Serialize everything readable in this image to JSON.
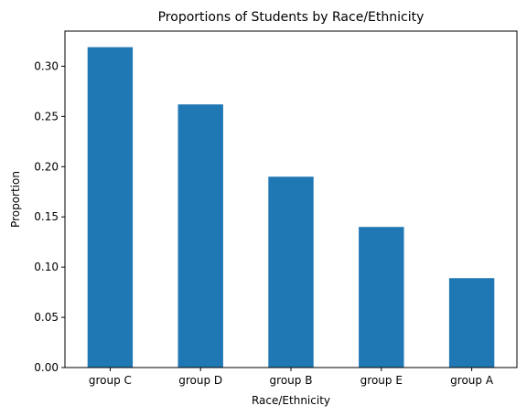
{
  "chart_data": {
    "type": "bar",
    "title": "Proportions of Students by Race/Ethnicity",
    "xlabel": "Race/Ethnicity",
    "ylabel": "Proportion",
    "categories": [
      "group C",
      "group D",
      "group B",
      "group E",
      "group A"
    ],
    "values": [
      0.319,
      0.262,
      0.19,
      0.14,
      0.089
    ],
    "ylim": [
      0,
      0.335
    ],
    "yticks": [
      "0.00",
      "0.05",
      "0.10",
      "0.15",
      "0.20",
      "0.25",
      "0.30"
    ],
    "bar_color": "#1f77b4",
    "grid": false,
    "legend": "none"
  }
}
